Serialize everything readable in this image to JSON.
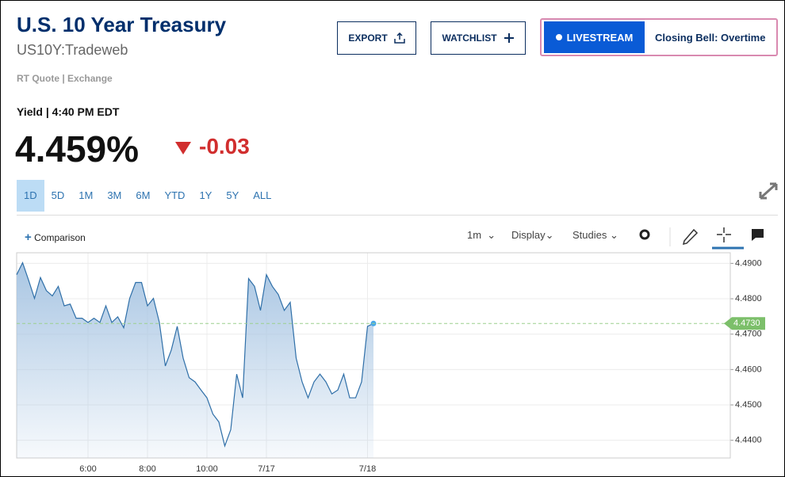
{
  "header": {
    "title": "U.S. 10 Year Treasury",
    "symbol": "US10Y:Tradeweb",
    "quote_source": "RT Quote | Exchange",
    "yield_label": "Yield | 4:40 PM EDT",
    "price": "4.459%",
    "change": "-0.03",
    "buttons": {
      "export": "EXPORT",
      "watchlist": "WATCHLIST",
      "livestream": "LIVESTREAM",
      "show": "Closing Bell: Overtime"
    }
  },
  "ranges": [
    "1D",
    "5D",
    "1M",
    "3M",
    "6M",
    "YTD",
    "1Y",
    "5Y",
    "ALL"
  ],
  "toolbar": {
    "comparison": "Comparison",
    "interval": "1m",
    "display": "Display",
    "studies": "Studies"
  },
  "chart_data": {
    "type": "area",
    "categories": [
      null,
      null,
      null,
      null,
      null,
      null,
      null,
      null,
      null,
      null,
      null,
      null,
      "6:00",
      null,
      null,
      null,
      null,
      null,
      null,
      null,
      null,
      null,
      "8:00",
      null,
      null,
      null,
      null,
      null,
      null,
      null,
      null,
      null,
      "10:00",
      null,
      null,
      null,
      null,
      null,
      null,
      null,
      null,
      null,
      "7/17",
      null,
      null,
      null,
      null,
      null,
      null,
      null,
      null,
      null,
      null,
      null,
      null,
      null,
      null,
      null,
      null,
      "7/18",
      null
    ],
    "values": [
      4.4868,
      4.4902,
      4.4853,
      4.4801,
      4.486,
      4.4823,
      4.4808,
      4.4835,
      4.478,
      4.4785,
      4.4745,
      4.4745,
      4.4733,
      4.4745,
      4.4733,
      4.478,
      4.4733,
      4.4749,
      4.4718,
      4.4801,
      4.4846,
      4.4846,
      4.478,
      4.4801,
      4.4733,
      4.461,
      4.4655,
      4.4722,
      4.4632,
      4.4577,
      4.4565,
      4.4542,
      4.452,
      4.4474,
      4.4452,
      4.4384,
      4.443,
      4.4587,
      4.452,
      4.4857,
      4.4835,
      4.4767,
      4.4868,
      4.4835,
      4.4812,
      4.4767,
      4.479,
      4.4632,
      4.4565,
      4.452,
      4.4565,
      4.4587,
      4.4565,
      4.4531,
      4.4542,
      4.4587,
      4.452,
      4.452,
      4.4565,
      4.4722,
      4.473
    ],
    "color": "#2f6fa8",
    "ylim": [
      4.435,
      4.493
    ],
    "yticks": [
      {
        "value": 4.44,
        "label": "4.4400"
      },
      {
        "value": 4.45,
        "label": "4.4500"
      },
      {
        "value": 4.46,
        "label": "4.4600"
      },
      {
        "value": 4.47,
        "label": "4.4700"
      },
      {
        "value": 4.48,
        "label": "4.4800"
      },
      {
        "value": 4.49,
        "label": "4.4900"
      }
    ],
    "current_value": 4.473,
    "current_label": "4.4730",
    "grid": true
  }
}
